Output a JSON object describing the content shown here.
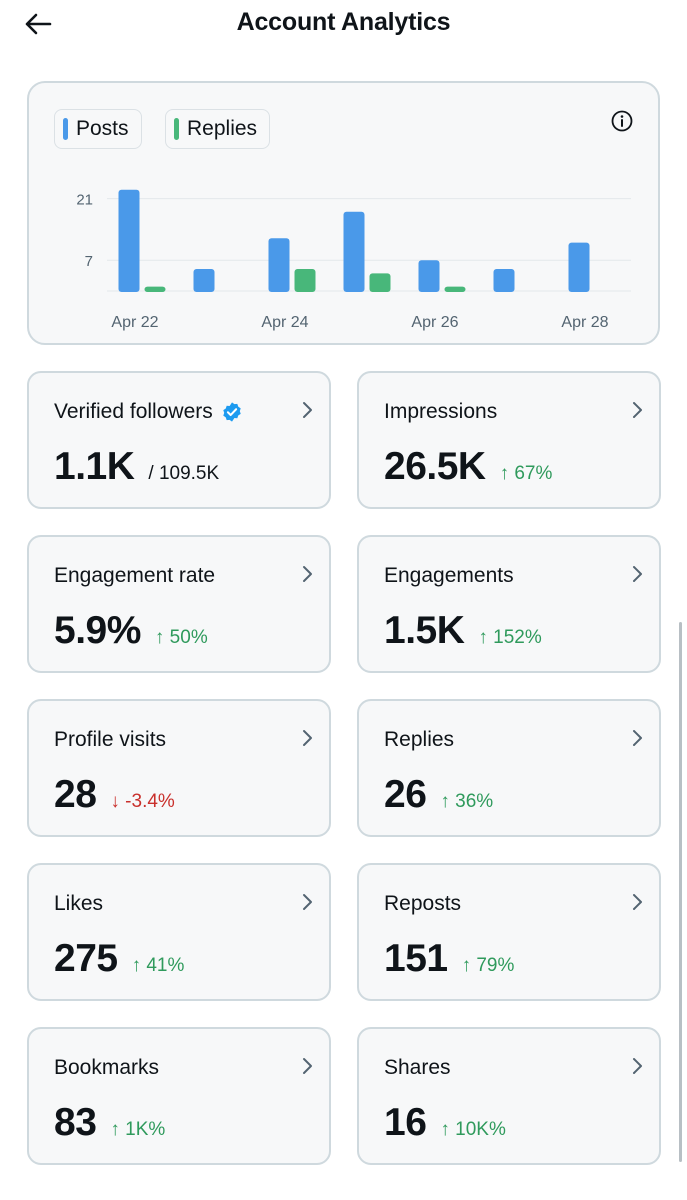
{
  "header": {
    "title": "Account Analytics"
  },
  "chart_data": {
    "type": "bar",
    "legend": [
      {
        "name": "Posts",
        "color": "#4a99e9"
      },
      {
        "name": "Replies",
        "color": "#48b77a"
      }
    ],
    "y_ticks": [
      "21",
      "7"
    ],
    "x_tick_labels": [
      "Apr 22",
      "Apr 24",
      "Apr 26",
      "Apr 28"
    ],
    "categories": [
      "Apr 22",
      "Apr 23",
      "Apr 24",
      "Apr 25",
      "Apr 26",
      "Apr 27",
      "Apr 28"
    ],
    "ylim": [
      0,
      25
    ],
    "series": [
      {
        "name": "Posts",
        "values": [
          23,
          5,
          12,
          18,
          7,
          5,
          11
        ]
      },
      {
        "name": "Replies",
        "values": [
          1,
          0,
          5,
          4,
          1,
          0,
          0
        ]
      }
    ]
  },
  "metrics": [
    {
      "label": "Verified followers",
      "value": "1.1K",
      "sub": "/ 109.5K",
      "delta": "",
      "direction": "none"
    },
    {
      "label": "Impressions",
      "value": "26.5K",
      "sub": "",
      "delta": "↑ 67%",
      "direction": "up"
    },
    {
      "label": "Engagement rate",
      "value": "5.9%",
      "sub": "",
      "delta": "↑ 50%",
      "direction": "up"
    },
    {
      "label": "Engagements",
      "value": "1.5K",
      "sub": "",
      "delta": "↑ 152%",
      "direction": "up"
    },
    {
      "label": "Profile visits",
      "value": "28",
      "sub": "",
      "delta": "↓ -3.4%",
      "direction": "down"
    },
    {
      "label": "Replies",
      "value": "26",
      "sub": "",
      "delta": "↑ 36%",
      "direction": "up"
    },
    {
      "label": "Likes",
      "value": "275",
      "sub": "",
      "delta": "↑ 41%",
      "direction": "up"
    },
    {
      "label": "Reposts",
      "value": "151",
      "sub": "",
      "delta": "↑ 79%",
      "direction": "up"
    },
    {
      "label": "Bookmarks",
      "value": "83",
      "sub": "",
      "delta": "↑ 1K%",
      "direction": "up"
    },
    {
      "label": "Shares",
      "value": "16",
      "sub": "",
      "delta": "↑ 10K%",
      "direction": "up"
    }
  ],
  "colors": {
    "accent": "#1d9bf0",
    "up": "#2f9a5c",
    "down": "#c9302c"
  }
}
